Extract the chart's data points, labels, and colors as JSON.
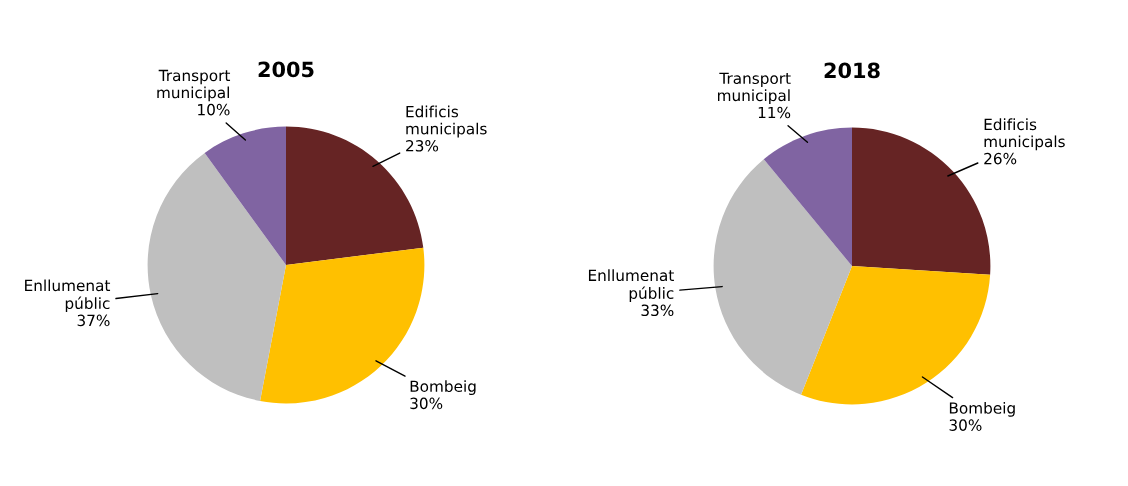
{
  "chart_data": [
    {
      "type": "pie",
      "title": "2005",
      "categories": [
        "Edificis\nmunicipals",
        "Bombeig",
        "Enllumenat\npúblic",
        "Transport\nmunicipal"
      ],
      "values": [
        23,
        30,
        37,
        10
      ],
      "value_labels": [
        "23%",
        "30%",
        "37%",
        "10%"
      ],
      "colors": [
        "#662424",
        "#ffc000",
        "#bfbfbf",
        "#8064a2"
      ]
    },
    {
      "type": "pie",
      "title": "2018",
      "categories": [
        "Edificis\nmunicipals",
        "Bombeig",
        "Enllumenat\npúblic",
        "Transport\nmunicipal"
      ],
      "values": [
        26,
        30,
        33,
        11
      ],
      "value_labels": [
        "26%",
        "30%",
        "33%",
        "11%"
      ],
      "colors": [
        "#662424",
        "#ffc000",
        "#bfbfbf",
        "#8064a2"
      ]
    }
  ]
}
